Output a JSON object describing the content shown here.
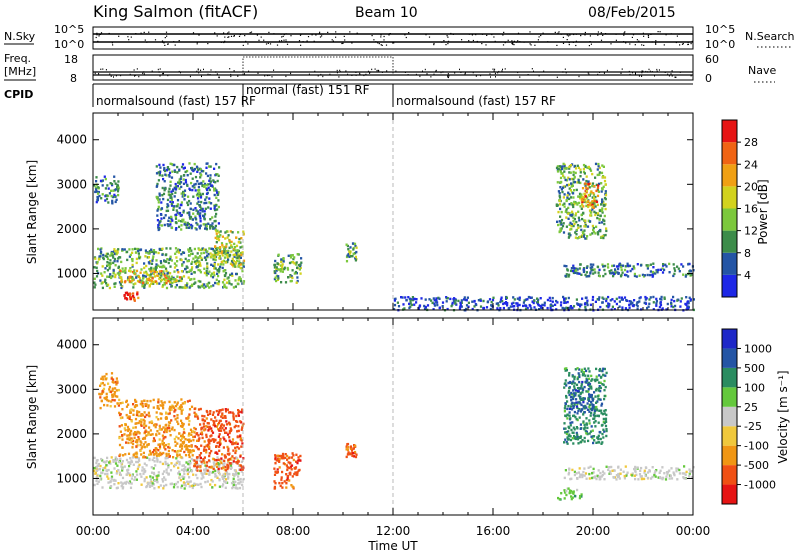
{
  "header": {
    "station": "King Salmon (fitACF)",
    "beam": "Beam 10",
    "date": "08/Feb/2015"
  },
  "strip_panels": {
    "noise": {
      "left_label": "N.Sky",
      "right_label": "N.Search",
      "left_ticks": [
        "10^5",
        "10^0"
      ],
      "right_ticks": [
        "10^5",
        "10^0"
      ]
    },
    "freq_nave": {
      "left_label_line1": "Freq.",
      "left_label_line2": "[MHz]",
      "right_label": "Nave",
      "left_ticks": [
        "18",
        "8"
      ],
      "right_ticks": [
        "60",
        "0"
      ]
    },
    "cpid": {
      "label": "CPID",
      "segments": [
        {
          "text": "normalsound (fast) 157 RF",
          "start_hr": 0,
          "end_hr": 6.05
        },
        {
          "text": "normal (fast) 151 RF",
          "start_hr": 6.05,
          "end_hr": 12
        },
        {
          "text": "normalsound (fast) 157 RF",
          "start_hr": 12,
          "end_hr": 24
        }
      ]
    }
  },
  "colorbars": {
    "power": {
      "label": "Power [dB]",
      "ticks": [
        "4",
        "8",
        "12",
        "16",
        "20",
        "24",
        "28"
      ],
      "colors": [
        "#1e28e6",
        "#2455a5",
        "#3c8c4a",
        "#7cc83c",
        "#d2d21e",
        "#f0a014",
        "#f06414",
        "#e61414"
      ]
    },
    "velocity": {
      "label": "Velocity [m s⁻¹]",
      "ticks": [
        "-1000",
        "-500",
        "-100",
        "-25",
        "25",
        "100",
        "500",
        "1000"
      ],
      "colors": [
        "#e61414",
        "#f05014",
        "#f09614",
        "#f0c83c",
        "#c8c8c8",
        "#64c83c",
        "#2a8c60",
        "#2455a5",
        "#1e28c8"
      ]
    }
  },
  "chart_data": [
    {
      "type": "heatmap",
      "name_shown": "",
      "xlabel": "Time UT",
      "ylabel": "Slant Range [km]",
      "x_ticks": [
        "00:00",
        "04:00",
        "08:00",
        "12:00",
        "16:00",
        "20:00",
        "00:00"
      ],
      "xlim_hours": [
        0,
        24
      ],
      "ylim_km": [
        180,
        4600
      ],
      "y_ticks": [
        1000,
        2000,
        3000,
        4000
      ],
      "quantity": "Power",
      "regions": [
        {
          "t": [
            0.0,
            6.0
          ],
          "range_km": [
            700,
            1600
          ],
          "dB": 12
        },
        {
          "t": [
            1.0,
            3.5
          ],
          "range_km": [
            800,
            1100
          ],
          "dB": 22
        },
        {
          "t": [
            1.2,
            1.8
          ],
          "range_km": [
            400,
            600
          ],
          "dB": 28
        },
        {
          "t": [
            0.0,
            1.0
          ],
          "range_km": [
            2600,
            3200
          ],
          "dB": 8
        },
        {
          "t": [
            2.5,
            5.0
          ],
          "range_km": [
            2000,
            3500
          ],
          "dB": 10
        },
        {
          "t": [
            4.8,
            6.0
          ],
          "range_km": [
            1200,
            2000
          ],
          "dB": 18
        },
        {
          "t": [
            7.2,
            8.3
          ],
          "range_km": [
            800,
            1500
          ],
          "dB": 12
        },
        {
          "t": [
            10.1,
            10.5
          ],
          "range_km": [
            1300,
            1700
          ],
          "dB": 14
        },
        {
          "t": [
            18.5,
            20.5
          ],
          "range_km": [
            1800,
            3500
          ],
          "dB": 14
        },
        {
          "t": [
            19.5,
            20.2
          ],
          "range_km": [
            2500,
            3100
          ],
          "dB": 24
        },
        {
          "t": [
            18.8,
            24.0
          ],
          "range_km": [
            950,
            1250
          ],
          "dB": 10
        },
        {
          "t": [
            12.0,
            24.0
          ],
          "range_km": [
            200,
            500
          ],
          "dB": 4
        }
      ]
    },
    {
      "type": "heatmap",
      "xlabel": "Time UT",
      "ylabel": "Slant Range [km]",
      "x_ticks": [
        "00:00",
        "04:00",
        "08:00",
        "12:00",
        "16:00",
        "20:00",
        "00:00"
      ],
      "xlim_hours": [
        0,
        24
      ],
      "ylim_km": [
        180,
        4600
      ],
      "y_ticks": [
        1000,
        2000,
        3000,
        4000
      ],
      "quantity": "Velocity",
      "regions": [
        {
          "t": [
            0.0,
            6.0
          ],
          "range_km": [
            800,
            1500
          ],
          "mps": 0
        },
        {
          "t": [
            1.0,
            4.0
          ],
          "range_km": [
            1500,
            2800
          ],
          "mps": -100
        },
        {
          "t": [
            4.0,
            6.0
          ],
          "range_km": [
            1200,
            2600
          ],
          "mps": -500
        },
        {
          "t": [
            0.2,
            1.0
          ],
          "range_km": [
            2600,
            3400
          ],
          "mps": -100
        },
        {
          "t": [
            7.2,
            8.3
          ],
          "range_km": [
            800,
            1600
          ],
          "mps": -500
        },
        {
          "t": [
            10.1,
            10.5
          ],
          "range_km": [
            1500,
            1800
          ],
          "mps": -500
        },
        {
          "t": [
            18.8,
            20.5
          ],
          "range_km": [
            1800,
            3500
          ],
          "mps": 500
        },
        {
          "t": [
            19.0,
            20.0
          ],
          "range_km": [
            2500,
            3200
          ],
          "mps": 1000
        },
        {
          "t": [
            18.8,
            24.0
          ],
          "range_km": [
            1000,
            1300
          ],
          "mps": 0
        },
        {
          "t": [
            18.5,
            19.5
          ],
          "range_km": [
            550,
            800
          ],
          "mps": 100
        }
      ]
    }
  ]
}
